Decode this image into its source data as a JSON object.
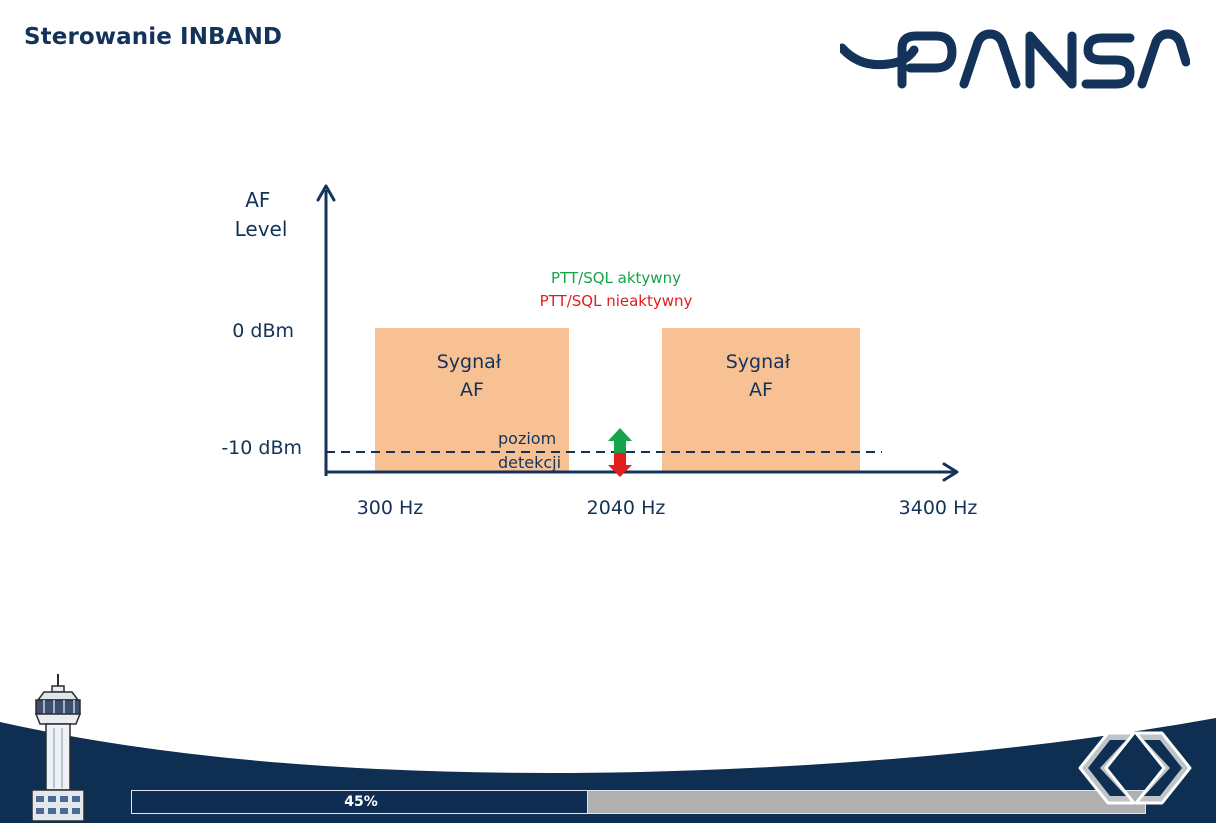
{
  "header": {
    "title": "Sterowanie INBAND",
    "logo_text": "PANSA"
  },
  "diagram": {
    "y_axis_label_line1": "AF",
    "y_axis_label_line2": "Level",
    "y_ticks": [
      "0 dBm",
      "-10 dBm"
    ],
    "x_ticks": [
      "300 Hz",
      "2040 Hz",
      "3400 Hz"
    ],
    "blocks": [
      {
        "line1": "Sygnał",
        "line2": "AF"
      },
      {
        "line1": "Sygnał",
        "line2": "AF"
      }
    ],
    "detection_label_line1": "poziom",
    "detection_label_line2": "detekcji",
    "legend_active": "PTT/SQL aktywny",
    "legend_inactive": "PTT/SQL nieaktywny",
    "colors": {
      "axis": "#14335a",
      "block": "#f8c193",
      "active": "#16a34a",
      "inactive": "#e11d1d"
    }
  },
  "footer": {
    "progress_value": 45,
    "progress_text": "45%",
    "prev_icon": "chevron-left-icon",
    "next_icon": "chevron-right-icon"
  }
}
